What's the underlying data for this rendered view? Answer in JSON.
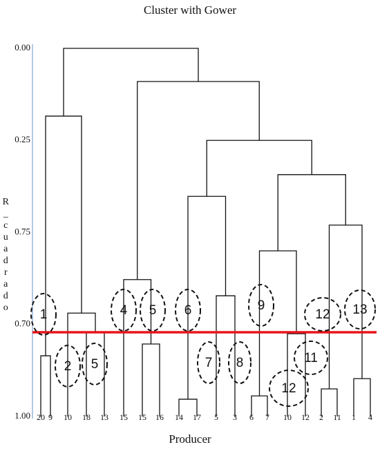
{
  "chart_data": {
    "type": "dendrogram",
    "title": "Cluster with Gower",
    "x_label": "Producer",
    "y_label": "R_cuadrado",
    "y_axis_labels": [
      "0.00",
      "0.25",
      "0.75",
      "0.70",
      "1.00"
    ],
    "ylim": [
      0,
      1
    ],
    "leaves": [
      "20",
      "9",
      "10",
      "18",
      "13",
      "15",
      "15",
      "16",
      "14",
      "17",
      "5",
      "3",
      "6",
      "7",
      "10",
      "12",
      "2",
      "11",
      "1",
      "4"
    ],
    "merges": [
      {
        "children": [
          0,
          1
        ],
        "height": 0.835
      },
      {
        "children": [
          3,
          4
        ],
        "height": 0.77
      },
      {
        "children": [
          2,
          21
        ],
        "height": 0.719
      },
      {
        "children": [
          20,
          22
        ],
        "height": 0.184
      },
      {
        "children": [
          6,
          7
        ],
        "height": 0.803
      },
      {
        "children": [
          5,
          24
        ],
        "height": 0.628
      },
      {
        "children": [
          8,
          9
        ],
        "height": 0.953
      },
      {
        "children": [
          10,
          11
        ],
        "height": 0.672
      },
      {
        "children": [
          26,
          27
        ],
        "height": 0.402
      },
      {
        "children": [
          12,
          13
        ],
        "height": 0.944
      },
      {
        "children": [
          14,
          15
        ],
        "height": 0.775
      },
      {
        "children": [
          29,
          30
        ],
        "height": 0.55
      },
      {
        "children": [
          16,
          17
        ],
        "height": 0.925
      },
      {
        "children": [
          18,
          19
        ],
        "height": 0.897
      },
      {
        "children": [
          32,
          33
        ],
        "height": 0.48
      },
      {
        "children": [
          31,
          34
        ],
        "height": 0.343
      },
      {
        "children": [
          28,
          35
        ],
        "height": 0.25
      },
      {
        "children": [
          25,
          36
        ],
        "height": 0.09
      },
      {
        "children": [
          23,
          37
        ],
        "height": 0
      }
    ],
    "cut": {
      "height": 0.771,
      "color": "#e8141a"
    },
    "annotations": [
      "1",
      "2",
      "5",
      "4",
      "5",
      "6",
      "7",
      "8",
      "9",
      "12",
      "13",
      "11",
      "12"
    ],
    "annotation_color": "#e8141a"
  }
}
